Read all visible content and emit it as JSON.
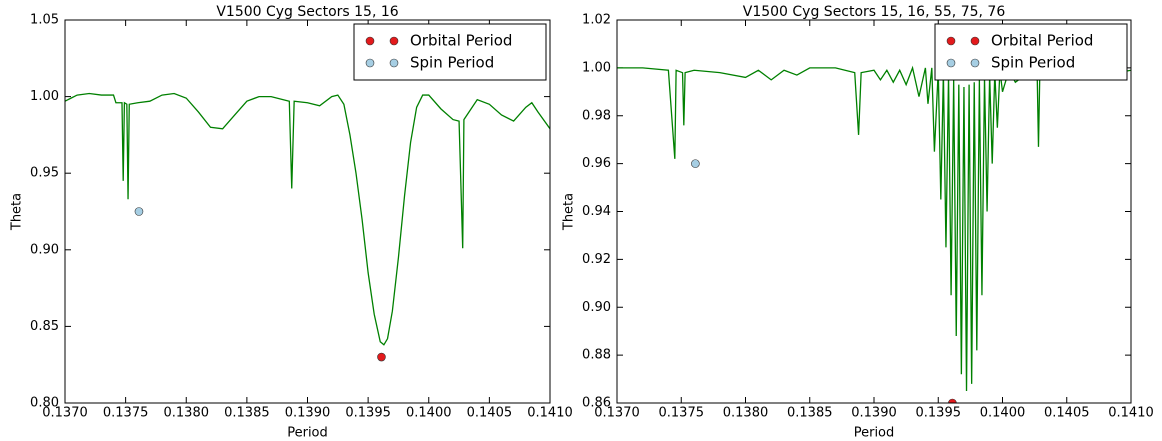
{
  "chart_data": [
    {
      "type": "line",
      "title": "V1500 Cyg Sectors 15, 16",
      "xlabel": "Period",
      "ylabel": "Theta",
      "xlim": [
        0.137,
        0.141
      ],
      "ylim": [
        0.8,
        1.05
      ],
      "xticks": [
        {
          "value": 0.137,
          "label": "0.1370"
        },
        {
          "value": 0.1375,
          "label": "0.1375"
        },
        {
          "value": 0.138,
          "label": "0.1380"
        },
        {
          "value": 0.1385,
          "label": "0.1385"
        },
        {
          "value": 0.139,
          "label": "0.1390"
        },
        {
          "value": 0.1395,
          "label": "0.1395"
        },
        {
          "value": 0.14,
          "label": "0.1400"
        },
        {
          "value": 0.1405,
          "label": "0.1405"
        },
        {
          "value": 0.141,
          "label": "0.1410"
        }
      ],
      "yticks": [
        {
          "value": 0.8,
          "label": "0.80"
        },
        {
          "value": 0.85,
          "label": "0.85"
        },
        {
          "value": 0.9,
          "label": "0.90"
        },
        {
          "value": 0.95,
          "label": "0.95"
        },
        {
          "value": 1.0,
          "label": "1.00"
        },
        {
          "value": 1.05,
          "label": "1.05"
        }
      ],
      "grid": false,
      "legend": "upper right",
      "series": [
        {
          "type": "line",
          "color": "#008000",
          "x": [
            0.137,
            0.13705,
            0.1371,
            0.1372,
            0.1373,
            0.1374,
            0.13742,
            0.13747,
            0.13748,
            0.13749,
            0.13751,
            0.13752,
            0.13753,
            0.1376,
            0.1377,
            0.1378,
            0.1379,
            0.138,
            0.1381,
            0.1382,
            0.1383,
            0.1384,
            0.1385,
            0.1386,
            0.1387,
            0.13885,
            0.13887,
            0.13889,
            0.139,
            0.1391,
            0.1392,
            0.13925,
            0.1393,
            0.13935,
            0.1394,
            0.13945,
            0.1395,
            0.13955,
            0.1396,
            0.13963,
            0.13966,
            0.1397,
            0.13975,
            0.1398,
            0.13985,
            0.1399,
            0.13995,
            0.14,
            0.1401,
            0.1402,
            0.14025,
            0.14027,
            0.14028,
            0.14029,
            0.1404,
            0.1405,
            0.1406,
            0.1407,
            0.1408,
            0.14085,
            0.1409,
            0.141
          ],
          "values": [
            0.997,
            0.999,
            1.001,
            1.002,
            1.001,
            1.001,
            0.996,
            0.996,
            0.945,
            0.996,
            0.995,
            0.933,
            0.995,
            0.996,
            0.997,
            1.001,
            1.002,
            0.999,
            0.99,
            0.98,
            0.979,
            0.988,
            0.997,
            1.0,
            1.0,
            0.997,
            0.94,
            0.997,
            0.996,
            0.994,
            1.0,
            1.001,
            0.995,
            0.975,
            0.95,
            0.92,
            0.885,
            0.858,
            0.84,
            0.838,
            0.842,
            0.86,
            0.895,
            0.935,
            0.97,
            0.993,
            1.001,
            1.001,
            0.992,
            0.985,
            0.984,
            0.929,
            0.901,
            0.985,
            0.998,
            0.995,
            0.988,
            0.984,
            0.993,
            0.996,
            0.99,
            0.979
          ]
        },
        {
          "type": "scatter",
          "name": "Orbital Period",
          "color": "#e31a1c",
          "x": [
            0.13961
          ],
          "values": [
            0.83
          ]
        },
        {
          "type": "scatter",
          "name": "Spin Period",
          "color": "#a6cee3",
          "x": [
            0.13761
          ],
          "values": [
            0.925
          ]
        }
      ]
    },
    {
      "type": "line",
      "title": "V1500 Cyg Sectors 15, 16, 55, 75, 76",
      "xlabel": "Period",
      "ylabel": "Theta",
      "xlim": [
        0.137,
        0.141
      ],
      "ylim": [
        0.86,
        1.02
      ],
      "xticks": [
        {
          "value": 0.137,
          "label": "0.1370"
        },
        {
          "value": 0.1375,
          "label": "0.1375"
        },
        {
          "value": 0.138,
          "label": "0.1380"
        },
        {
          "value": 0.1385,
          "label": "0.1385"
        },
        {
          "value": 0.139,
          "label": "0.1390"
        },
        {
          "value": 0.1395,
          "label": "0.1395"
        },
        {
          "value": 0.14,
          "label": "0.1400"
        },
        {
          "value": 0.1405,
          "label": "0.1405"
        },
        {
          "value": 0.141,
          "label": "0.1410"
        }
      ],
      "yticks": [
        {
          "value": 0.86,
          "label": "0.86"
        },
        {
          "value": 0.88,
          "label": "0.88"
        },
        {
          "value": 0.9,
          "label": "0.90"
        },
        {
          "value": 0.92,
          "label": "0.92"
        },
        {
          "value": 0.94,
          "label": "0.94"
        },
        {
          "value": 0.96,
          "label": "0.96"
        },
        {
          "value": 0.98,
          "label": "0.98"
        },
        {
          "value": 1.0,
          "label": "1.00"
        },
        {
          "value": 1.02,
          "label": "1.02"
        }
      ],
      "grid": false,
      "legend": "upper right",
      "series": [
        {
          "type": "line",
          "color": "#008000",
          "x": [
            0.137,
            0.1372,
            0.1374,
            0.13745,
            0.13746,
            0.13751,
            0.13752,
            0.13753,
            0.1376,
            0.1378,
            0.138,
            0.1381,
            0.1382,
            0.1383,
            0.1384,
            0.1385,
            0.1387,
            0.13885,
            0.13888,
            0.1389,
            0.139,
            0.13905,
            0.1391,
            0.13915,
            0.1392,
            0.13925,
            0.1393,
            0.13935,
            0.1394,
            0.13942,
            0.13945,
            0.13947,
            0.1395,
            0.13952,
            0.13954,
            0.13956,
            0.13958,
            0.1396,
            0.13962,
            0.13964,
            0.13966,
            0.13968,
            0.1397,
            0.13972,
            0.13974,
            0.13976,
            0.13978,
            0.1398,
            0.13982,
            0.13984,
            0.13986,
            0.13988,
            0.1399,
            0.13992,
            0.13994,
            0.13996,
            0.13998,
            0.14,
            0.14005,
            0.1401,
            0.1402,
            0.14027,
            0.14028,
            0.14029,
            0.1404,
            0.1406,
            0.1408,
            0.141
          ],
          "values": [
            1.0,
            1.0,
            0.999,
            0.962,
            0.999,
            0.998,
            0.976,
            0.998,
            0.999,
            0.998,
            0.996,
            0.999,
            0.995,
            0.999,
            0.997,
            1.0,
            1.0,
            0.998,
            0.972,
            0.998,
            0.999,
            0.995,
            0.999,
            0.994,
            0.999,
            0.993,
            1.0,
            0.988,
            1.0,
            0.985,
            1.0,
            0.965,
            0.999,
            0.945,
            0.998,
            0.925,
            0.997,
            0.905,
            0.995,
            0.888,
            0.993,
            0.872,
            0.992,
            0.865,
            0.993,
            0.868,
            0.994,
            0.882,
            0.995,
            0.905,
            0.996,
            0.94,
            0.997,
            0.96,
            0.998,
            0.975,
            0.999,
            0.99,
            0.999,
            0.994,
            0.998,
            0.997,
            0.967,
            0.997,
            0.996,
            0.999,
            0.997,
            0.999
          ]
        },
        {
          "type": "scatter",
          "name": "Orbital Period",
          "color": "#e31a1c",
          "x": [
            0.13961
          ],
          "values": [
            0.86
          ]
        },
        {
          "type": "scatter",
          "name": "Spin Period",
          "color": "#a6cee3",
          "x": [
            0.13761
          ],
          "values": [
            0.96
          ]
        }
      ]
    }
  ]
}
